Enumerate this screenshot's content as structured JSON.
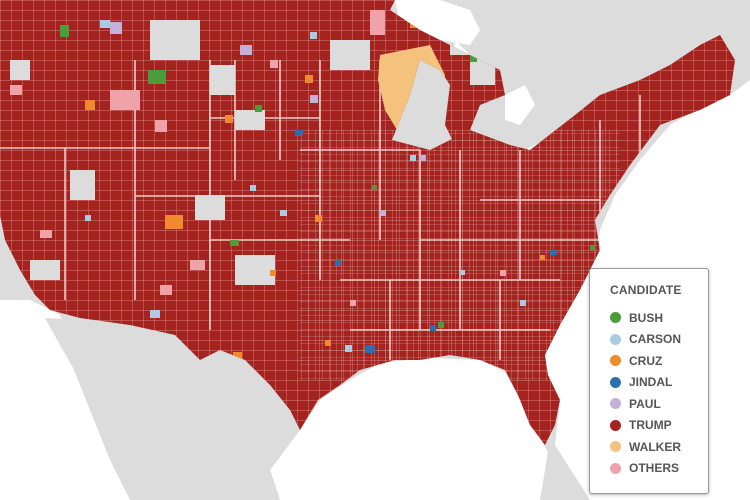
{
  "legend": {
    "title": "CANDIDATE",
    "items": [
      {
        "label": "BUSH",
        "color": "#4a9d3a"
      },
      {
        "label": "CARSON",
        "color": "#a9cce3"
      },
      {
        "label": "CRUZ",
        "color": "#ef8a2e"
      },
      {
        "label": "JINDAL",
        "color": "#2c6fae"
      },
      {
        "label": "PAUL",
        "color": "#c3b1d9"
      },
      {
        "label": "TRUMP",
        "color": "#a5231f"
      },
      {
        "label": "WALKER",
        "color": "#f4c27d"
      },
      {
        "label": "OTHERS",
        "color": "#efa3a8"
      }
    ]
  },
  "map": {
    "land_color": "#dcdcdc",
    "water_color": "#ffffff",
    "county_border_color": "#f2dede",
    "dominant_candidate": "TRUMP"
  }
}
